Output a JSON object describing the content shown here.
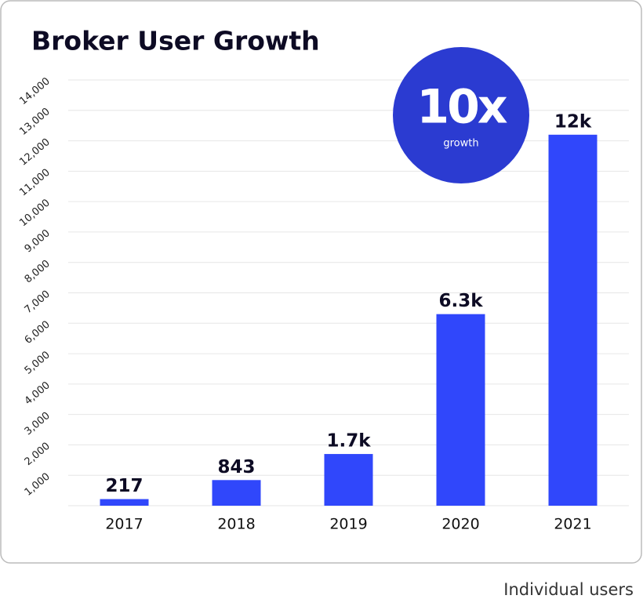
{
  "chart_data": {
    "type": "bar",
    "title": "Broker User Growth",
    "categories": [
      "2017",
      "2018",
      "2019",
      "2020",
      "2021"
    ],
    "values": [
      217,
      843,
      1700,
      6300,
      12200
    ],
    "value_labels": [
      "217",
      "843",
      "1.7k",
      "6.3k",
      "12k"
    ],
    "color": "#3047fb",
    "ylim": [
      0,
      14000
    ],
    "yticks": [
      {
        "value": 1000,
        "label": "1,000"
      },
      {
        "value": 2000,
        "label": "2,000"
      },
      {
        "value": 3000,
        "label": "3,000"
      },
      {
        "value": 4000,
        "label": "4,000"
      },
      {
        "value": 5000,
        "label": "5,000"
      },
      {
        "value": 6000,
        "label": "6,000"
      },
      {
        "value": 7000,
        "label": "7,000"
      },
      {
        "value": 8000,
        "label": "8,000"
      },
      {
        "value": 9000,
        "label": "9,000"
      },
      {
        "value": 10000,
        "label": "10,000"
      },
      {
        "value": 11000,
        "label": "11,000"
      },
      {
        "value": 12000,
        "label": "12,000"
      },
      {
        "value": 13000,
        "label": "13,000"
      },
      {
        "value": 14000,
        "label": "14,000"
      }
    ],
    "grid": true,
    "badge": {
      "text": "10x",
      "subtext": "growth",
      "color": "#2b3bd1"
    },
    "caption": "Individual users"
  }
}
